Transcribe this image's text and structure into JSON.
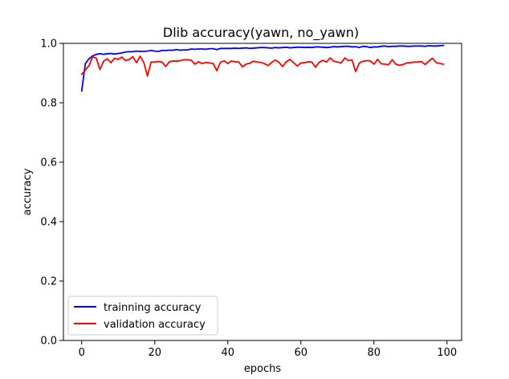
{
  "chart_data": {
    "type": "line",
    "title": "Dlib accuracy(yawn, no_yawn)",
    "xlabel": "epochs",
    "ylabel": "accuracy",
    "xlim": [
      -5,
      104
    ],
    "ylim": [
      0.0,
      1.0
    ],
    "x_ticks": [
      0,
      20,
      40,
      60,
      80,
      100
    ],
    "x_tick_labels": [
      "0",
      "20",
      "40",
      "60",
      "80",
      "100"
    ],
    "y_ticks": [
      0.0,
      0.2,
      0.4,
      0.6,
      0.8,
      1.0
    ],
    "y_tick_labels": [
      "0.0",
      "0.2",
      "0.4",
      "0.6",
      "0.8",
      "1.0"
    ],
    "grid": false,
    "legend_position": "lower-left",
    "x": [
      0,
      1,
      2,
      3,
      4,
      5,
      6,
      7,
      8,
      9,
      10,
      11,
      12,
      13,
      14,
      15,
      16,
      17,
      18,
      19,
      20,
      21,
      22,
      23,
      24,
      25,
      26,
      27,
      28,
      29,
      30,
      31,
      32,
      33,
      34,
      35,
      36,
      37,
      38,
      39,
      40,
      41,
      42,
      43,
      44,
      45,
      46,
      47,
      48,
      49,
      50,
      51,
      52,
      53,
      54,
      55,
      56,
      57,
      58,
      59,
      60,
      61,
      62,
      63,
      64,
      65,
      66,
      67,
      68,
      69,
      70,
      71,
      72,
      73,
      74,
      75,
      76,
      77,
      78,
      79,
      80,
      81,
      82,
      83,
      84,
      85,
      86,
      87,
      88,
      89,
      90,
      91,
      92,
      93,
      94,
      95,
      96,
      97,
      98,
      99
    ],
    "series": [
      {
        "name": "trainning accuracy",
        "color": "#0000ff",
        "values": [
          0.84,
          0.932,
          0.948,
          0.958,
          0.963,
          0.965,
          0.963,
          0.965,
          0.966,
          0.964,
          0.966,
          0.968,
          0.971,
          0.972,
          0.972,
          0.974,
          0.973,
          0.973,
          0.974,
          0.976,
          0.974,
          0.973,
          0.976,
          0.976,
          0.977,
          0.977,
          0.979,
          0.977,
          0.978,
          0.978,
          0.981,
          0.98,
          0.981,
          0.981,
          0.98,
          0.982,
          0.982,
          0.979,
          0.983,
          0.983,
          0.983,
          0.983,
          0.984,
          0.983,
          0.984,
          0.985,
          0.983,
          0.984,
          0.985,
          0.986,
          0.986,
          0.985,
          0.984,
          0.986,
          0.985,
          0.986,
          0.987,
          0.985,
          0.986,
          0.987,
          0.987,
          0.986,
          0.987,
          0.986,
          0.988,
          0.988,
          0.987,
          0.986,
          0.987,
          0.989,
          0.988,
          0.989,
          0.99,
          0.99,
          0.988,
          0.989,
          0.986,
          0.99,
          0.989,
          0.986,
          0.988,
          0.988,
          0.99,
          0.991,
          0.989,
          0.99,
          0.99,
          0.991,
          0.991,
          0.99,
          0.99,
          0.991,
          0.991,
          0.991,
          0.99,
          0.992,
          0.991,
          0.991,
          0.992,
          0.993
        ]
      },
      {
        "name": "validation accuracy",
        "color": "#ff0000",
        "values": [
          0.896,
          0.91,
          0.925,
          0.955,
          0.95,
          0.912,
          0.94,
          0.948,
          0.935,
          0.95,
          0.946,
          0.954,
          0.942,
          0.946,
          0.955,
          0.935,
          0.957,
          0.936,
          0.89,
          0.937,
          0.937,
          0.939,
          0.937,
          0.922,
          0.938,
          0.941,
          0.94,
          0.942,
          0.945,
          0.945,
          0.943,
          0.93,
          0.938,
          0.932,
          0.936,
          0.934,
          0.932,
          0.908,
          0.937,
          0.941,
          0.932,
          0.941,
          0.938,
          0.937,
          0.921,
          0.93,
          0.933,
          0.94,
          0.937,
          0.936,
          0.932,
          0.925,
          0.936,
          0.944,
          0.936,
          0.922,
          0.938,
          0.946,
          0.935,
          0.924,
          0.934,
          0.935,
          0.938,
          0.937,
          0.92,
          0.936,
          0.943,
          0.937,
          0.951,
          0.94,
          0.937,
          0.934,
          0.951,
          0.942,
          0.944,
          0.905,
          0.934,
          0.94,
          0.942,
          0.941,
          0.93,
          0.946,
          0.931,
          0.93,
          0.928,
          0.945,
          0.93,
          0.926,
          0.929,
          0.934,
          0.935,
          0.937,
          0.937,
          0.939,
          0.929,
          0.94,
          0.95,
          0.936,
          0.932,
          0.93
        ]
      }
    ]
  }
}
